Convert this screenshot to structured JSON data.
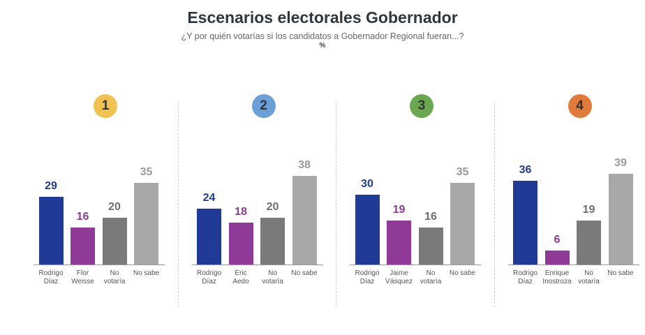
{
  "header": {
    "title": "Escenarios electorales Gobernador",
    "subtitle": "¿Y por quién votarías si los candidatos a Gobernador Regional fueran...?",
    "unit": "%"
  },
  "chart_data": [
    {
      "type": "bar",
      "badge": "1",
      "badge_color": "#f0c24f",
      "categories": [
        "Rodrigo\nDíaz",
        "Flor\nWeisse",
        "No\nvotaría",
        "No sabe"
      ],
      "values": [
        29,
        16,
        20,
        35
      ],
      "colors": [
        "#1f3b97",
        "#8e3a96",
        "#7a7a7a",
        "#a8a8a8"
      ],
      "label_colors": [
        "#1f3b97",
        "#8e3a96",
        "#6e6e6e",
        "#9a9a9a"
      ],
      "ylim": [
        0,
        45
      ]
    },
    {
      "type": "bar",
      "badge": "2",
      "badge_color": "#6a9fd8",
      "categories": [
        "Rodrigo\nDíaz",
        "Eric\nAedo",
        "No\nvotaría",
        "No sabe"
      ],
      "values": [
        24,
        18,
        20,
        38
      ],
      "colors": [
        "#1f3b97",
        "#8e3a96",
        "#7a7a7a",
        "#a8a8a8"
      ],
      "label_colors": [
        "#1f3b97",
        "#8e3a96",
        "#6e6e6e",
        "#9a9a9a"
      ],
      "ylim": [
        0,
        45
      ]
    },
    {
      "type": "bar",
      "badge": "3",
      "badge_color": "#6aa84f",
      "categories": [
        "Rodrigo\nDíaz",
        "Jaime\nVásquez",
        "No\nvotaría",
        "No sabe"
      ],
      "values": [
        30,
        19,
        16,
        35
      ],
      "colors": [
        "#1f3b97",
        "#8e3a96",
        "#7a7a7a",
        "#a8a8a8"
      ],
      "label_colors": [
        "#1f3b97",
        "#8e3a96",
        "#6e6e6e",
        "#9a9a9a"
      ],
      "ylim": [
        0,
        45
      ]
    },
    {
      "type": "bar",
      "badge": "4",
      "badge_color": "#e07b39",
      "categories": [
        "Rodrigo\nDíaz",
        "Enrique\nInostroza",
        "No\nvotaría",
        "No sabe"
      ],
      "values": [
        36,
        6,
        19,
        39
      ],
      "colors": [
        "#1f3b97",
        "#8e3a96",
        "#7a7a7a",
        "#a8a8a8"
      ],
      "label_colors": [
        "#1f3b97",
        "#8e3a96",
        "#6e6e6e",
        "#9a9a9a"
      ],
      "ylim": [
        0,
        45
      ]
    }
  ]
}
